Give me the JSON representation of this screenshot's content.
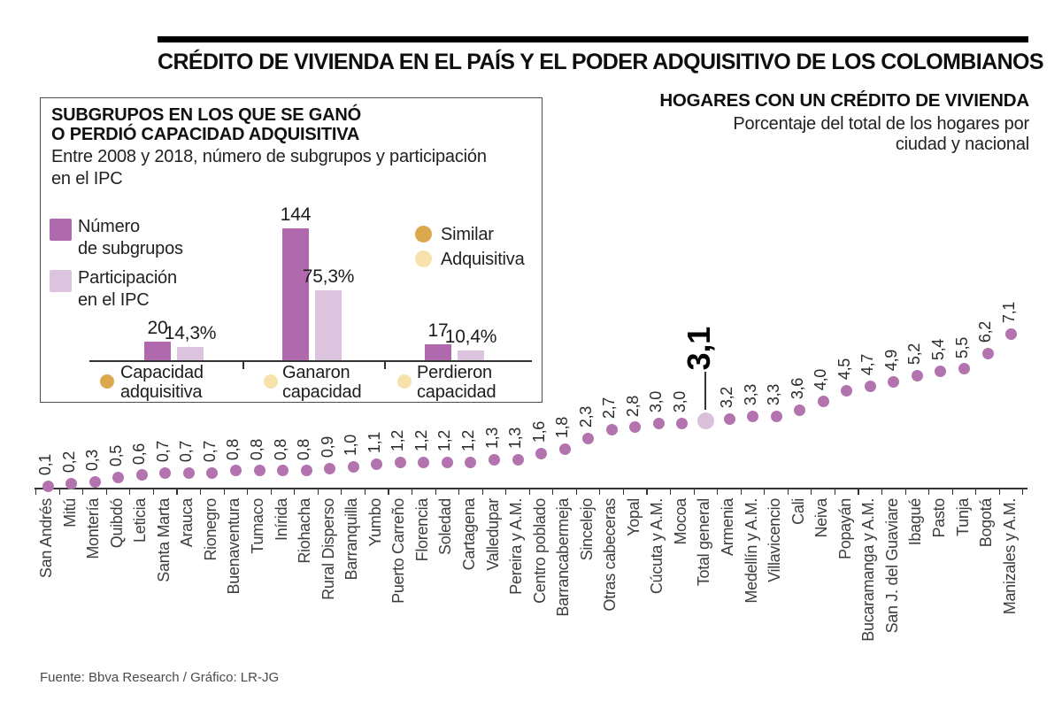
{
  "page": {
    "title": "CRÉDITO DE VIVIENDA EN EL PAÍS Y EL PODER ADQUISITIVO DE LOS COLOMBIANOS",
    "source": "Fuente: Bbva Research / Gráfico: LR-JG"
  },
  "right_header": {
    "title": "HOGARES CON UN CRÉDITO DE VIVIENDA",
    "subtitle": "Porcentaje del total de los hogares por\nciudad y nacional"
  },
  "inset": {
    "title": "SUBGRUPOS EN LOS QUE SE GANÓ\nO PERDIÓ CAPACIDAD ADQUISITIVA",
    "subtitle": "Entre 2008 y 2018, número de subgrupos y participación\nen el IPC",
    "legend": [
      {
        "label": "Número\nde subgrupos",
        "color": "#b169ad"
      },
      {
        "label": "Participación\nen el IPC",
        "color": "#dcc4de"
      }
    ],
    "legend2": [
      {
        "label": "Similar",
        "color": "#dba84d"
      },
      {
        "label": "Adquisitiva",
        "color": "#f8e2ac"
      }
    ]
  },
  "colors": {
    "dot": "#b273ae",
    "highlight_dot": "#dbc0db",
    "bar_dark": "#b169ad",
    "bar_light": "#dcc4de",
    "gold": "#dba84d",
    "cream": "#f8e2ac",
    "axis": "#333333",
    "title_rule": "#000000"
  },
  "chart_data": [
    {
      "type": "scatter",
      "title": "HOGARES CON UN CRÉDITO DE VIVIENDA",
      "subtitle": "Porcentaje del total de los hogares por ciudad y nacional",
      "grid": false,
      "ylim": [
        0,
        7.5
      ],
      "categories": [
        "San Andrés",
        "Mitú",
        "Montería",
        "Quibdó",
        "Leticia",
        "Santa Marta",
        "Arauca",
        "Rionegro",
        "Buenaventura",
        "Tumaco",
        "Inírida",
        "Riohacha",
        "Rural Disperso",
        "Barranquilla",
        "Yumbo",
        "Puerto Carreño",
        "Florencia",
        "Soledad",
        "Cartagena",
        "Valledupar",
        "Pereira y A.M.",
        "Centro poblado",
        "Barrancabermeja",
        "Sincelejo",
        "Otras cabeceras",
        "Yopal",
        "Cúcuta y A.M.",
        "Mocoa",
        "Total general",
        "Armenia",
        "Medellín y A.M.",
        "Villavicencio",
        "Cali",
        "Neiva",
        "Popayán",
        "Bucaramanga y A.M.",
        "San J. del Guaviare",
        "Ibagué",
        "Pasto",
        "Tunja",
        "Bogotá",
        "Manizales y A.M."
      ],
      "values": [
        0.1,
        0.2,
        0.3,
        0.5,
        0.6,
        0.7,
        0.7,
        0.7,
        0.8,
        0.8,
        0.8,
        0.8,
        0.9,
        1.0,
        1.1,
        1.2,
        1.2,
        1.2,
        1.2,
        1.3,
        1.3,
        1.6,
        1.8,
        2.3,
        2.7,
        2.8,
        3.0,
        3.0,
        3.1,
        3.2,
        3.3,
        3.3,
        3.6,
        4.0,
        4.5,
        4.7,
        4.9,
        5.2,
        5.4,
        5.5,
        6.2,
        7.1
      ],
      "labels": [
        "0,1",
        "0,2",
        "0,3",
        "0,5",
        "0,6",
        "0,7",
        "0,7",
        "0,7",
        "0,8",
        "0,8",
        "0,8",
        "0,8",
        "0,9",
        "1,0",
        "1,1",
        "1,2",
        "1,2",
        "1,2",
        "1,2",
        "1,3",
        "1,3",
        "1,6",
        "1,8",
        "2,3",
        "2,7",
        "2,8",
        "3,0",
        "3,0",
        "3,1",
        "3,2",
        "3,3",
        "3,3",
        "3,6",
        "4,0",
        "4,5",
        "4,7",
        "4,9",
        "5,2",
        "5,4",
        "5,5",
        "6,2",
        "7,1"
      ],
      "highlight_category": "Total general",
      "highlight_label": "3,1"
    },
    {
      "type": "bar",
      "title": "SUBGRUPOS EN LOS QUE SE GANÓ O PERDIÓ CAPACIDAD ADQUISITIVA",
      "subtitle": "Entre 2008 y 2018, número de subgrupos y participación en el IPC",
      "grid": false,
      "categories": [
        "Capacidad adquisitiva",
        "Ganaron capacidad",
        "Perdieron capacidad"
      ],
      "categories_display": [
        "Capacidad\nadquisitiva",
        "Ganaron\ncapacidad",
        "Perdieron\ncapacidad"
      ],
      "category_marker_colors": [
        "#dba84d",
        "#f8e2ac",
        "#f8e2ac"
      ],
      "series": [
        {
          "name": "Número de subgrupos",
          "values": [
            20,
            144,
            17
          ],
          "labels": [
            "20",
            "144",
            "17"
          ],
          "color": "#b169ad"
        },
        {
          "name": "Participación en el IPC",
          "values": [
            14.3,
            75.3,
            10.4
          ],
          "labels": [
            "14,3%",
            "75,3%",
            "10,4%"
          ],
          "color": "#dcc4de"
        }
      ],
      "secondary_legend": [
        "Similar",
        "Adquisitiva"
      ]
    }
  ]
}
